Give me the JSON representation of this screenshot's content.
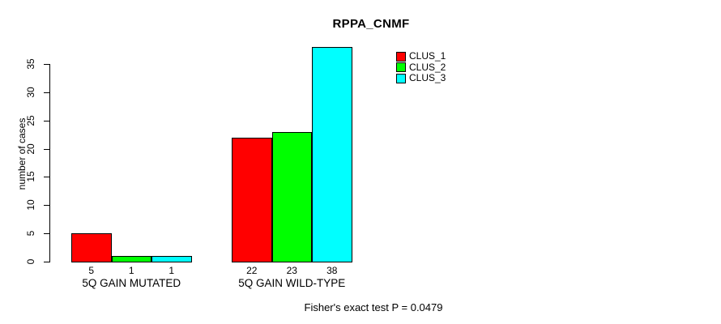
{
  "chart_data": {
    "type": "bar",
    "title": "RPPA_CNMF",
    "ylabel": "number of cases",
    "xlabel": "",
    "categories": [
      "5Q GAIN MUTATED",
      "5Q GAIN WILD-TYPE"
    ],
    "series": [
      {
        "name": "CLUS_1",
        "color": "#FF0000",
        "values": [
          5,
          22
        ]
      },
      {
        "name": "CLUS_2",
        "color": "#00FF00",
        "values": [
          1,
          23
        ]
      },
      {
        "name": "CLUS_3",
        "color": "#00FFFF",
        "values": [
          1,
          38
        ]
      }
    ],
    "yticks": [
      0,
      5,
      10,
      15,
      20,
      25,
      30,
      35
    ],
    "ylim": [
      0,
      38
    ],
    "grid": false,
    "bar_border_color": "#000000",
    "show_bar_value_labels": true,
    "legend": {
      "position": "top-right-inside",
      "entries": [
        "CLUS_1",
        "CLUS_2",
        "CLUS_3"
      ]
    },
    "annotation": "Fisher's exact test P = 0.0479"
  }
}
